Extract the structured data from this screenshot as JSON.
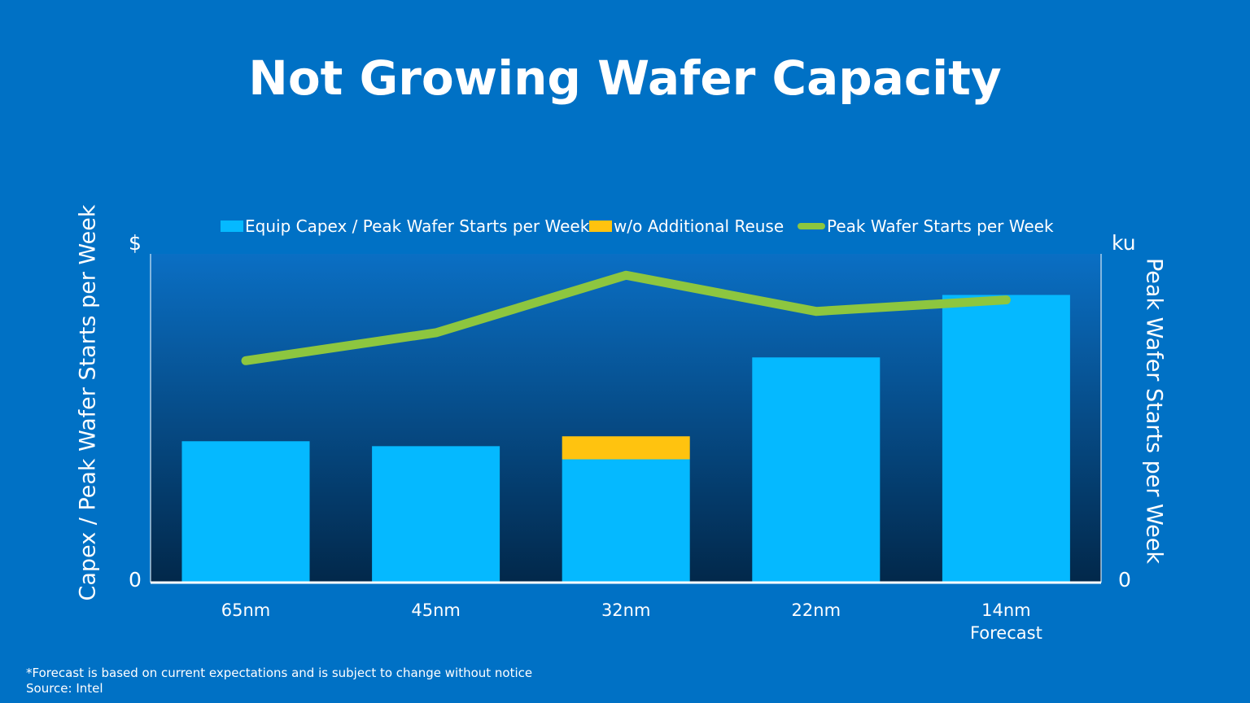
{
  "colors": {
    "background": "#0071c5",
    "bar_base": "#05b9ff",
    "bar_reuse": "#ffc30f",
    "line": "#8dc63f",
    "plot_top": "#0a6fc4",
    "plot_bottom": "#02284a"
  },
  "left_axis_unit": "$",
  "right_axis_unit": "ku",
  "left_zero": "0",
  "right_zero": "0",
  "footnote": {
    "line1": "*Forecast  is based on current expectations and is subject to change without notice",
    "line2": "Source: Intel"
  },
  "chart_data": {
    "type": "bar",
    "title": "Not Growing Wafer Capacity",
    "ylabel": "Capex / Peak Wafer Starts per Week",
    "y2label": "Peak Wafer Starts per Week",
    "categories": [
      "65nm",
      "45nm",
      "32nm",
      "22nm",
      "14nm"
    ],
    "category_sublabels": [
      "",
      "",
      "",
      "",
      "Forecast"
    ],
    "ylim": [
      0,
      100
    ],
    "y2lim": [
      0,
      100
    ],
    "stacked": true,
    "legend_position": "top",
    "series": [
      {
        "name": "Equip Capex / Peak Wafer Starts per Week",
        "kind": "bar",
        "values": [
          43,
          41.5,
          37.5,
          68.5,
          87.5
        ]
      },
      {
        "name": "w/o Additional Reuse",
        "kind": "bar",
        "values": [
          0,
          0,
          7,
          0,
          0
        ]
      },
      {
        "name": "Peak Wafer Starts per Week",
        "kind": "line",
        "axis": "right",
        "values": [
          67.5,
          76,
          93.5,
          82.5,
          86
        ]
      }
    ]
  }
}
